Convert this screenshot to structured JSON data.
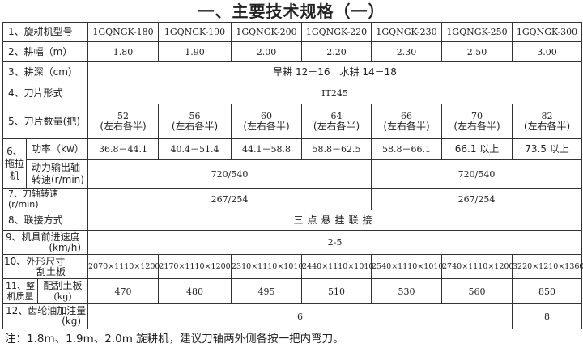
{
  "title": "一、主要技术规格（一）",
  "models": [
    "1GQNGK-180",
    "1GQNGK-190",
    "1GQNGK-200",
    "1GQNGK-220",
    "1GQNGK-230",
    "1GQNGK-250",
    "1GQNGK-300"
  ],
  "rows": {
    "model_label": "1、旋耕机型号",
    "width_label": "2、耕幅（m）",
    "width": [
      "1.80",
      "1.90",
      "2.00",
      "2.20",
      "2.30",
      "2.50",
      "3.00"
    ],
    "depth_label": "3、耕深（cm）",
    "depth": "旱耕 12－16　水耕 14－18",
    "blade_type_label": "4、刀片形式",
    "blade_type": "IT245",
    "blade_count_label": "5、刀片数量(把)",
    "blade_count": [
      "52",
      "56",
      "60",
      "64",
      "66",
      "70",
      "82"
    ],
    "blade_count_note": "(左右各半)",
    "tractor_label": "6、拖拉机",
    "power_label": "功率（kw）",
    "power": [
      "36.8－44.1",
      "40.4－51.4",
      "44.1－58.8",
      "58.8－62.5",
      "58.8－66.1",
      "66.1 以上",
      "73.5 以上"
    ],
    "pto_label": "动力输出轴转速(r/min)",
    "pto": [
      "720/540",
      "720/540"
    ],
    "shaft_speed_label": "7、刀轴转速(r/min)",
    "shaft_speed": [
      "267/254",
      "267/254"
    ],
    "hitch_label": "8、联接方式",
    "hitch": "三点悬挂联接",
    "speed_label_1": "9、机具前进速度",
    "speed_label_2": "(km/h)",
    "speed": "2-5",
    "dims_label_1": "10、外形尺寸",
    "dims_label_2": "刮土板",
    "dims": [
      "2070×1110×1200",
      "2170×1110×1200",
      "2310×1110×1010",
      "2440×1110×1010",
      "2540×1110×1010",
      "2740×1110×1200",
      "3220×1210×1360"
    ],
    "mass_label": "11、整机质量",
    "mass_sub_label_1": "配刮土板",
    "mass_sub_label_2": "(kg)",
    "mass": [
      "470",
      "480",
      "495",
      "510",
      "530",
      "560",
      "850"
    ],
    "oil_label_1": "12、齿轮油加注量",
    "oil_label_2": "(kg)",
    "oil": [
      "6",
      "8"
    ]
  },
  "note": "注：1.8m、1.9m、2.0m 旋耕机，建议刀轴两外侧各按一把内弯刀。"
}
